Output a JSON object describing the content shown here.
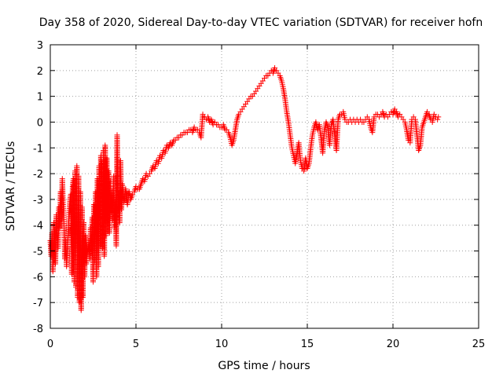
{
  "chart_data": {
    "type": "scatter",
    "title": "Day 358 of 2020, Sidereal Day-to-day VTEC variation (SDTVAR) for receiver hofn",
    "xlabel": "GPS time / hours",
    "ylabel": "SDTVAR / TECUs",
    "xlim": [
      0,
      25
    ],
    "ylim": [
      -8,
      3
    ],
    "xticks": [
      0,
      5,
      10,
      15,
      20,
      25
    ],
    "yticks": [
      -8,
      -7,
      -6,
      -5,
      -4,
      -3,
      -2,
      -1,
      0,
      1,
      2,
      3
    ],
    "grid": true,
    "marker": "+",
    "color": "#ff0000",
    "series": [
      {
        "name": "SDTVAR",
        "points": [
          [
            0.0,
            -4.6
          ],
          [
            0.05,
            -5.2
          ],
          [
            0.1,
            -4.3
          ],
          [
            0.15,
            -5.8
          ],
          [
            0.2,
            -3.9
          ],
          [
            0.25,
            -4.8
          ],
          [
            0.3,
            -5.5
          ],
          [
            0.35,
            -3.6
          ],
          [
            0.4,
            -4.4
          ],
          [
            0.45,
            -4.9
          ],
          [
            0.5,
            -3.3
          ],
          [
            0.55,
            -4.1
          ],
          [
            0.6,
            -2.7
          ],
          [
            0.65,
            -3.8
          ],
          [
            0.7,
            -2.2
          ],
          [
            0.75,
            -3.2
          ],
          [
            0.8,
            -4.0
          ],
          [
            0.85,
            -5.3
          ],
          [
            0.9,
            -4.6
          ],
          [
            0.95,
            -5.6
          ],
          [
            1.0,
            -4.9
          ],
          [
            1.05,
            -4.1
          ],
          [
            1.1,
            -3.5
          ],
          [
            1.15,
            -3.0
          ],
          [
            1.2,
            -2.8
          ],
          [
            1.25,
            -5.9
          ],
          [
            1.3,
            -2.5
          ],
          [
            1.35,
            -2.2
          ],
          [
            1.4,
            -6.2
          ],
          [
            1.45,
            -1.9
          ],
          [
            1.5,
            -6.4
          ],
          [
            1.55,
            -1.7
          ],
          [
            1.6,
            -6.8
          ],
          [
            1.65,
            -2.1
          ],
          [
            1.7,
            -7.0
          ],
          [
            1.75,
            -2.7
          ],
          [
            1.8,
            -7.3
          ],
          [
            1.85,
            -3.3
          ],
          [
            1.9,
            -6.8
          ],
          [
            1.95,
            -3.9
          ],
          [
            2.0,
            -6.0
          ],
          [
            2.05,
            -4.4
          ],
          [
            2.1,
            -5.5
          ],
          [
            2.15,
            -4.8
          ],
          [
            2.2,
            -5.1
          ],
          [
            2.25,
            -4.6
          ],
          [
            2.3,
            -5.3
          ],
          [
            2.35,
            -4.1
          ],
          [
            2.4,
            -5.0
          ],
          [
            2.45,
            -3.7
          ],
          [
            2.5,
            -6.2
          ],
          [
            2.55,
            -3.2
          ],
          [
            2.6,
            -5.4
          ],
          [
            2.65,
            -2.7
          ],
          [
            2.7,
            -6.0
          ],
          [
            2.75,
            -2.2
          ],
          [
            2.8,
            -5.6
          ],
          [
            2.85,
            -1.7
          ],
          [
            2.9,
            -4.8
          ],
          [
            2.95,
            -1.3
          ],
          [
            3.0,
            -1.6
          ],
          [
            3.05,
            -4.9
          ],
          [
            3.1,
            -1.1
          ],
          [
            3.15,
            -5.2
          ],
          [
            3.2,
            -0.9
          ],
          [
            3.25,
            -4.4
          ],
          [
            3.3,
            -1.4
          ],
          [
            3.35,
            -3.9
          ],
          [
            3.4,
            -1.9
          ],
          [
            3.45,
            -4.3
          ],
          [
            3.5,
            -2.3
          ],
          [
            3.55,
            -3.5
          ],
          [
            3.6,
            -2.7
          ],
          [
            3.65,
            -3.8
          ],
          [
            3.7,
            -2.1
          ],
          [
            3.75,
            -4.1
          ],
          [
            3.8,
            -3.0
          ],
          [
            3.85,
            -4.8
          ],
          [
            3.9,
            -0.5
          ],
          [
            3.95,
            -3.5
          ],
          [
            4.0,
            -2.8
          ],
          [
            4.05,
            -3.9
          ],
          [
            4.1,
            -1.5
          ],
          [
            4.15,
            -3.4
          ],
          [
            4.2,
            -2.4
          ],
          [
            4.3,
            -3.1
          ],
          [
            4.4,
            -2.6
          ],
          [
            4.5,
            -3.2
          ],
          [
            4.6,
            -2.7
          ],
          [
            4.7,
            -3.0
          ],
          [
            4.8,
            -2.8
          ],
          [
            4.9,
            -2.7
          ],
          [
            5.0,
            -2.5
          ],
          [
            5.1,
            -2.6
          ],
          [
            5.2,
            -2.6
          ],
          [
            5.3,
            -2.4
          ],
          [
            5.4,
            -2.2
          ],
          [
            5.5,
            -2.3
          ],
          [
            5.6,
            -2.0
          ],
          [
            5.7,
            -2.1
          ],
          [
            5.8,
            -2.0
          ],
          [
            5.9,
            -1.9
          ],
          [
            6.0,
            -1.7
          ],
          [
            6.1,
            -1.8
          ],
          [
            6.2,
            -1.5
          ],
          [
            6.3,
            -1.6
          ],
          [
            6.4,
            -1.3
          ],
          [
            6.5,
            -1.4
          ],
          [
            6.6,
            -1.1
          ],
          [
            6.7,
            -1.2
          ],
          [
            6.8,
            -0.9
          ],
          [
            6.9,
            -1.0
          ],
          [
            7.0,
            -0.8
          ],
          [
            7.1,
            -0.9
          ],
          [
            7.2,
            -0.7
          ],
          [
            7.3,
            -0.7
          ],
          [
            7.4,
            -0.6
          ],
          [
            7.5,
            -0.6
          ],
          [
            7.6,
            -0.5
          ],
          [
            7.7,
            -0.5
          ],
          [
            7.8,
            -0.4
          ],
          [
            7.9,
            -0.4
          ],
          [
            8.0,
            -0.4
          ],
          [
            8.1,
            -0.3
          ],
          [
            8.2,
            -0.3
          ],
          [
            8.3,
            -0.4
          ],
          [
            8.4,
            -0.2
          ],
          [
            8.5,
            -0.3
          ],
          [
            8.6,
            -0.3
          ],
          [
            8.7,
            -0.4
          ],
          [
            8.8,
            -0.6
          ],
          [
            8.9,
            0.3
          ],
          [
            9.0,
            0.2
          ],
          [
            9.1,
            0.1
          ],
          [
            9.2,
            0.2
          ],
          [
            9.3,
            0.0
          ],
          [
            9.4,
            0.1
          ],
          [
            9.5,
            -0.1
          ],
          [
            9.6,
            0.0
          ],
          [
            9.7,
            -0.1
          ],
          [
            9.8,
            -0.1
          ],
          [
            9.9,
            -0.2
          ],
          [
            10.0,
            -0.2
          ],
          [
            10.1,
            -0.1
          ],
          [
            10.2,
            -0.3
          ],
          [
            10.3,
            -0.3
          ],
          [
            10.4,
            -0.4
          ],
          [
            10.5,
            -0.6
          ],
          [
            10.6,
            -0.9
          ],
          [
            10.7,
            -0.7
          ],
          [
            10.8,
            -0.3
          ],
          [
            10.9,
            0.1
          ],
          [
            11.0,
            0.3
          ],
          [
            11.1,
            0.4
          ],
          [
            11.2,
            0.5
          ],
          [
            11.3,
            0.6
          ],
          [
            11.4,
            0.7
          ],
          [
            11.5,
            0.8
          ],
          [
            11.6,
            0.9
          ],
          [
            11.7,
            1.0
          ],
          [
            11.8,
            1.0
          ],
          [
            11.9,
            1.1
          ],
          [
            12.0,
            1.2
          ],
          [
            12.1,
            1.3
          ],
          [
            12.2,
            1.4
          ],
          [
            12.3,
            1.5
          ],
          [
            12.4,
            1.6
          ],
          [
            12.5,
            1.7
          ],
          [
            12.6,
            1.8
          ],
          [
            12.7,
            1.8
          ],
          [
            12.8,
            1.9
          ],
          [
            12.9,
            2.0
          ],
          [
            13.0,
            1.9
          ],
          [
            13.1,
            2.1
          ],
          [
            13.2,
            2.0
          ],
          [
            13.3,
            1.9
          ],
          [
            13.4,
            1.8
          ],
          [
            13.5,
            1.6
          ],
          [
            13.6,
            1.3
          ],
          [
            13.7,
            0.9
          ],
          [
            13.8,
            0.4
          ],
          [
            13.9,
            0.0
          ],
          [
            14.0,
            -0.5
          ],
          [
            14.1,
            -1.0
          ],
          [
            14.2,
            -1.3
          ],
          [
            14.3,
            -1.6
          ],
          [
            14.4,
            -1.2
          ],
          [
            14.5,
            -0.8
          ],
          [
            14.6,
            -1.5
          ],
          [
            14.7,
            -1.8
          ],
          [
            14.8,
            -1.9
          ],
          [
            14.9,
            -1.4
          ],
          [
            15.0,
            -1.8
          ],
          [
            15.1,
            -1.6
          ],
          [
            15.2,
            -1.0
          ],
          [
            15.3,
            -0.5
          ],
          [
            15.4,
            -0.2
          ],
          [
            15.5,
            0.0
          ],
          [
            15.6,
            -0.3
          ],
          [
            15.7,
            -0.1
          ],
          [
            15.8,
            -0.6
          ],
          [
            15.9,
            -1.2
          ],
          [
            16.0,
            -0.3
          ],
          [
            16.1,
            0.0
          ],
          [
            16.2,
            -0.2
          ],
          [
            16.3,
            -0.9
          ],
          [
            16.4,
            -0.1
          ],
          [
            16.5,
            0.1
          ],
          [
            16.6,
            -0.5
          ],
          [
            16.7,
            -1.1
          ],
          [
            16.8,
            0.1
          ],
          [
            16.9,
            0.3
          ],
          [
            17.0,
            0.3
          ],
          [
            17.1,
            0.4
          ],
          [
            17.2,
            0.1
          ],
          [
            17.3,
            0.0
          ],
          [
            17.4,
            0.0
          ],
          [
            17.5,
            0.1
          ],
          [
            17.6,
            0.0
          ],
          [
            17.7,
            0.1
          ],
          [
            17.8,
            0.0
          ],
          [
            17.9,
            0.1
          ],
          [
            18.0,
            0.0
          ],
          [
            18.1,
            0.1
          ],
          [
            18.2,
            0.0
          ],
          [
            18.3,
            0.0
          ],
          [
            18.4,
            0.1
          ],
          [
            18.5,
            0.2
          ],
          [
            18.6,
            0.1
          ],
          [
            18.7,
            -0.2
          ],
          [
            18.8,
            -0.4
          ],
          [
            18.9,
            0.2
          ],
          [
            19.0,
            0.3
          ],
          [
            19.1,
            0.3
          ],
          [
            19.2,
            0.2
          ],
          [
            19.3,
            0.3
          ],
          [
            19.4,
            0.4
          ],
          [
            19.5,
            0.2
          ],
          [
            19.6,
            0.3
          ],
          [
            19.7,
            0.2
          ],
          [
            19.8,
            0.3
          ],
          [
            19.9,
            0.4
          ],
          [
            20.0,
            0.3
          ],
          [
            20.1,
            0.5
          ],
          [
            20.2,
            0.4
          ],
          [
            20.3,
            0.2
          ],
          [
            20.4,
            0.3
          ],
          [
            20.5,
            0.2
          ],
          [
            20.6,
            0.1
          ],
          [
            20.7,
            0.0
          ],
          [
            20.8,
            -0.3
          ],
          [
            20.9,
            -0.7
          ],
          [
            21.0,
            -0.8
          ],
          [
            21.1,
            0.1
          ],
          [
            21.2,
            0.2
          ],
          [
            21.3,
            0.1
          ],
          [
            21.4,
            -0.5
          ],
          [
            21.5,
            -1.1
          ],
          [
            21.6,
            -0.9
          ],
          [
            21.7,
            -0.2
          ],
          [
            21.8,
            0.0
          ],
          [
            21.9,
            0.2
          ],
          [
            22.0,
            0.4
          ],
          [
            22.1,
            0.3
          ],
          [
            22.2,
            0.1
          ],
          [
            22.3,
            0.0
          ],
          [
            22.4,
            0.3
          ],
          [
            22.5,
            0.2
          ],
          [
            22.6,
            0.1
          ],
          [
            22.65,
            0.2
          ]
        ]
      }
    ]
  }
}
